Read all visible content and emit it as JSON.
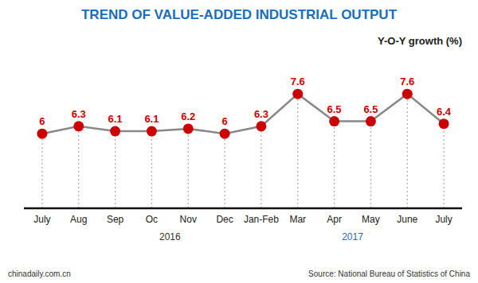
{
  "chart_data": {
    "type": "line",
    "title": "TREND OF VALUE-ADDED INDUSTRIAL OUTPUT",
    "subtitle": "Y-O-Y growth (%)",
    "categories": [
      "July",
      "Aug",
      "Sep",
      "Oc",
      "Nov",
      "Dec",
      "Jan-Feb",
      "Mar",
      "Apr",
      "May",
      "June",
      "July"
    ],
    "values": [
      6.0,
      6.3,
      6.1,
      6.1,
      6.2,
      6.0,
      6.3,
      7.6,
      6.5,
      6.5,
      7.6,
      6.4
    ],
    "color": "#cc0000",
    "marker": "circle",
    "ylim": [
      3.0,
      8.5
    ],
    "tick_labels": "x",
    "data_labels": true,
    "grid": false,
    "annotations": [
      {
        "text": "2016",
        "category": "Nov"
      },
      {
        "text": "2017",
        "category": "May"
      }
    ],
    "footer": [
      "chinadaily.com.cn",
      "Source: National Bureau of Statistics of China"
    ]
  }
}
